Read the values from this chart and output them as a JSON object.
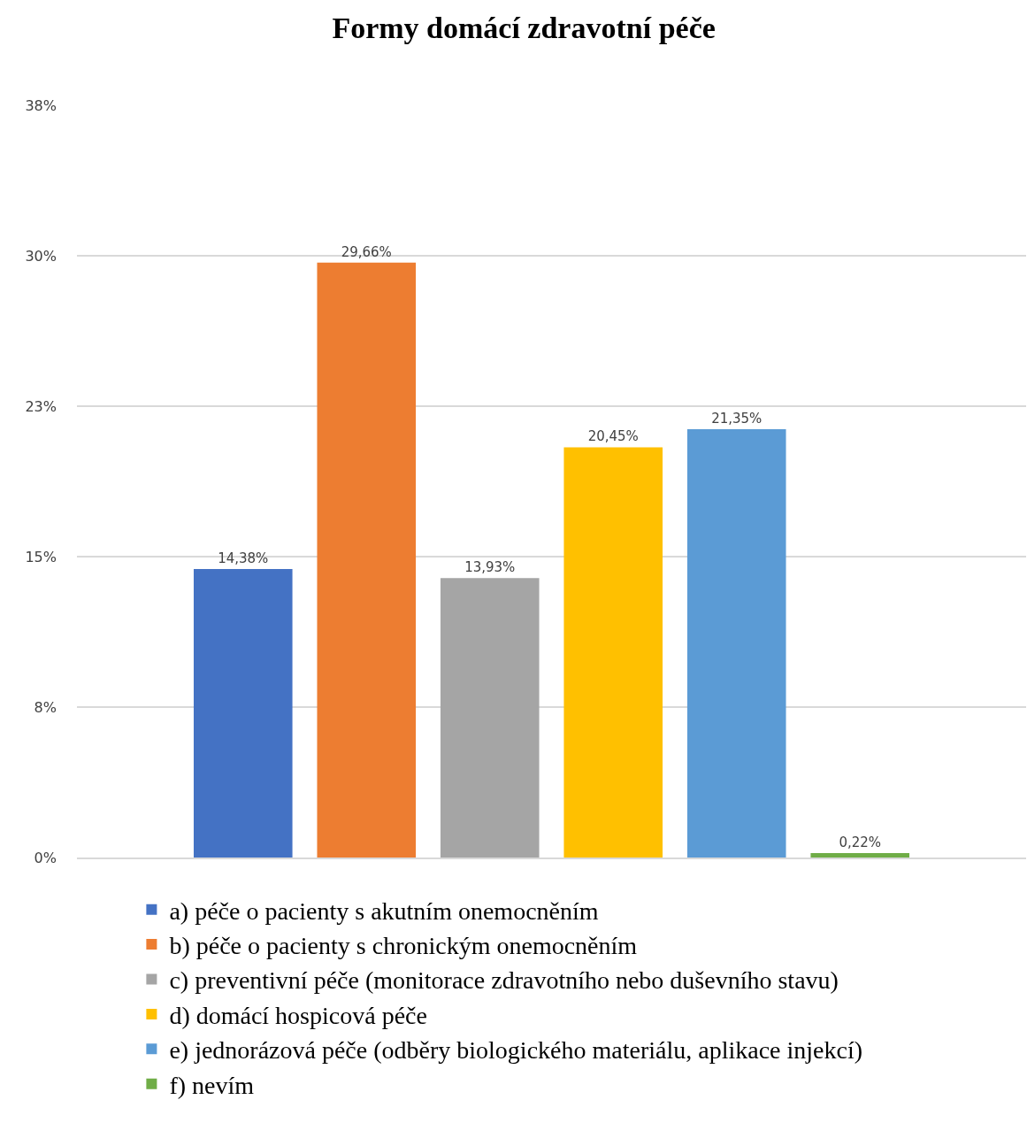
{
  "chart_data": {
    "type": "bar",
    "title": "Formy domácí zdravotní péče",
    "categories": [
      null
    ],
    "series": [
      {
        "name": "a) péče o pacienty s akutním onemocněním",
        "color": "#4472c4",
        "values": [
          14.38
        ],
        "value_labels": [
          "14,38%"
        ]
      },
      {
        "name": "b) péče o pacienty s chronickým onemocněním",
        "color": "#ed7d31",
        "values": [
          29.66
        ],
        "value_labels": [
          "29,66%"
        ]
      },
      {
        "name": "c) preventivní péče (monitorace zdravotního nebo duševního stavu)",
        "color": "#a5a5a5",
        "values": [
          13.93
        ],
        "value_labels": [
          "13,93%"
        ]
      },
      {
        "name": "d) domácí hospicová péče",
        "color": "#ffc000",
        "values": [
          20.45
        ],
        "value_labels": [
          "20,45%"
        ]
      },
      {
        "name": "e) jednorázová péče (odběry biologického materiálu, aplikace injekcí)",
        "color": "#5b9bd5",
        "values": [
          21.35
        ],
        "value_labels": [
          "21,35%"
        ]
      },
      {
        "name": "f) nevím",
        "color": "#70ad47",
        "values": [
          0.22
        ],
        "value_labels": [
          "0,22%"
        ]
      }
    ],
    "ylim": [
      0,
      37.5
    ],
    "yticks": [
      {
        "value": 0,
        "label": "0%"
      },
      {
        "value": 7.5,
        "label": "8%"
      },
      {
        "value": 15,
        "label": "15%"
      },
      {
        "value": 22.5,
        "label": "23%"
      },
      {
        "value": 30,
        "label": "30%"
      },
      {
        "value": 37.5,
        "label": "38%"
      }
    ],
    "grid": "y",
    "legend": "bottom"
  }
}
